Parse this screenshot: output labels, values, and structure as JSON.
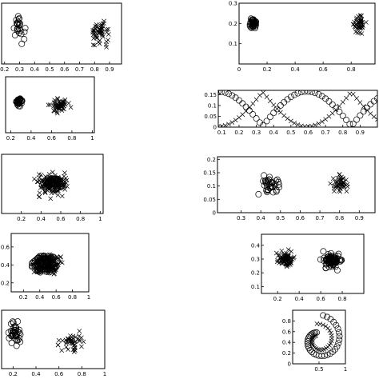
{
  "chart_data": [
    {
      "type": "scatter",
      "xlim": [
        0.18,
        0.98
      ],
      "ylim": [
        0,
        1
      ],
      "xticks": [
        "0.2",
        "0.3",
        "0.4",
        "0.5",
        "0.6",
        "0.7",
        "0.8",
        "0.9"
      ],
      "xtick_values": [
        0.2,
        0.3,
        0.4,
        0.5,
        0.6,
        0.7,
        0.8,
        0.9
      ],
      "yticks": [],
      "ytick_values": [],
      "series": [
        {
          "marker": "circle",
          "cluster": {
            "cx": 0.29,
            "cy": 0.6,
            "sx": 0.06,
            "sy": 0.25,
            "n": 24,
            "clip": true
          }
        },
        {
          "marker": "cross",
          "cluster": {
            "cx": 0.84,
            "cy": 0.5,
            "sx": 0.09,
            "sy": 0.3,
            "n": 55,
            "clip": true
          }
        }
      ]
    },
    {
      "type": "scatter",
      "xlim": [
        0,
        0.97
      ],
      "ylim": [
        0,
        0.3
      ],
      "xticks": [
        "0",
        "0.2",
        "0.4",
        "0.6",
        "0.8"
      ],
      "xtick_values": [
        0,
        0.2,
        0.4,
        0.6,
        0.8
      ],
      "yticks": [
        "0.1",
        "0.2",
        "0.3"
      ],
      "ytick_values": [
        0.1,
        0.2,
        0.3
      ],
      "series": [
        {
          "marker": "circle",
          "cluster": {
            "cx": 0.1,
            "cy": 0.2,
            "sx": 0.04,
            "sy": 0.035,
            "n": 45,
            "clip": true
          }
        },
        {
          "marker": "cross",
          "cluster": {
            "cx": 0.86,
            "cy": 0.19,
            "sx": 0.07,
            "sy": 0.07,
            "n": 45,
            "clip": true
          }
        }
      ]
    },
    {
      "type": "scatter",
      "xlim": [
        0.15,
        1.02
      ],
      "ylim": [
        0,
        1
      ],
      "xticks": [
        "0.2",
        "0.4",
        "0.6",
        "0.8",
        "1"
      ],
      "xtick_values": [
        0.2,
        0.4,
        0.6,
        0.8,
        1
      ],
      "yticks": [],
      "ytick_values": [],
      "series": [
        {
          "marker": "circle",
          "cluster": {
            "cx": 0.28,
            "cy": 0.55,
            "sx": 0.045,
            "sy": 0.1,
            "n": 40,
            "clip": true
          }
        },
        {
          "marker": "cross",
          "cluster": {
            "cx": 0.68,
            "cy": 0.5,
            "sx": 0.15,
            "sy": 0.2,
            "n": 55,
            "clip": true
          }
        }
      ]
    },
    {
      "type": "scatter",
      "xlim": [
        0.08,
        1
      ],
      "ylim": [
        0,
        0.17
      ],
      "xticks": [
        "0.1",
        "0.2",
        "0.3",
        "0.4",
        "0.5",
        "0.6",
        "0.7",
        "0.8",
        "0.9"
      ],
      "xtick_values": [
        0.1,
        0.2,
        0.3,
        0.4,
        0.5,
        0.6,
        0.7,
        0.8,
        0.9
      ],
      "yticks": [
        "0",
        "0.05",
        "0.1",
        "0.15"
      ],
      "ytick_values": [
        0,
        0.05,
        0.1,
        0.15
      ],
      "series": [
        {
          "marker": "circle",
          "curve": "absCosUp"
        },
        {
          "marker": "cross",
          "curve": "absCosDown"
        }
      ]
    },
    {
      "type": "scatter",
      "xlim": [
        0,
        1.03
      ],
      "ylim": [
        0,
        1
      ],
      "xticks": [
        "0.2",
        "0.4",
        "0.6",
        "0.8",
        "1"
      ],
      "xtick_values": [
        0.2,
        0.4,
        0.6,
        0.8,
        1
      ],
      "yticks": [],
      "ytick_values": [],
      "series": [
        {
          "marker": "circle",
          "ellipse": {
            "cx": 0.52,
            "cy": 0.5,
            "rx": 0.11,
            "ry": 0.1,
            "n": 70
          }
        },
        {
          "marker": "cross",
          "cluster": {
            "cx": 0.5,
            "cy": 0.5,
            "sx": 0.3,
            "sy": 0.35,
            "n": 80,
            "clip": true
          }
        }
      ]
    },
    {
      "type": "scatter",
      "xlim": [
        0.18,
        0.98
      ],
      "ylim": [
        0,
        0.21
      ],
      "xticks": [
        "0.3",
        "0.4",
        "0.5",
        "0.6",
        "0.7",
        "0.8",
        "0.9"
      ],
      "xtick_values": [
        0.3,
        0.4,
        0.5,
        0.6,
        0.7,
        0.8,
        0.9
      ],
      "yticks": [
        "0",
        "0.05",
        "0.1",
        "0.15",
        "0.2"
      ],
      "ytick_values": [
        0,
        0.05,
        0.1,
        0.15,
        0.2
      ],
      "series": [
        {
          "marker": "circle",
          "cluster": {
            "cx": 0.45,
            "cy": 0.1,
            "sx": 0.1,
            "sy": 0.06,
            "n": 40,
            "clip": true
          }
        },
        {
          "marker": "cross",
          "cluster": {
            "cx": 0.8,
            "cy": 0.11,
            "sx": 0.07,
            "sy": 0.05,
            "n": 45,
            "clip": true
          }
        }
      ]
    },
    {
      "type": "scatter",
      "xlim": [
        0.05,
        1
      ],
      "ylim": [
        0.1,
        0.75
      ],
      "xticks": [
        "0.2",
        "0.4",
        "0.6",
        "0.8",
        "1"
      ],
      "xtick_values": [
        0.2,
        0.4,
        0.6,
        0.8,
        1
      ],
      "yticks": [
        "0.2",
        "0.4",
        "0.6"
      ],
      "ytick_values": [
        0.2,
        0.4,
        0.6
      ],
      "series": [
        {
          "marker": "circle",
          "ellipse": {
            "cx": 0.46,
            "cy": 0.41,
            "rx": 0.17,
            "ry": 0.1,
            "n": 90
          }
        },
        {
          "marker": "cross",
          "cluster": {
            "cx": 0.5,
            "cy": 0.42,
            "sx": 0.28,
            "sy": 0.18,
            "n": 110,
            "clip": true
          }
        }
      ]
    },
    {
      "type": "scatter",
      "xlim": [
        0.05,
        1
      ],
      "ylim": [
        0.05,
        0.48
      ],
      "xticks": [
        "0.2",
        "0.4",
        "0.6",
        "0.8"
      ],
      "xtick_values": [
        0.2,
        0.4,
        0.6,
        0.8
      ],
      "yticks": [
        "0.1",
        "0.2",
        "0.3",
        "0.4"
      ],
      "ytick_values": [
        0.1,
        0.2,
        0.3,
        0.4
      ],
      "series": [
        {
          "marker": "circle",
          "cluster": {
            "cx": 0.7,
            "cy": 0.29,
            "sx": 0.13,
            "sy": 0.08,
            "n": 90,
            "clip": true
          }
        },
        {
          "marker": "cross",
          "cluster": {
            "cx": 0.28,
            "cy": 0.3,
            "sx": 0.12,
            "sy": 0.08,
            "n": 80,
            "clip": true
          }
        }
      ]
    },
    {
      "type": "scatter",
      "xlim": [
        0.1,
        1
      ],
      "ylim": [
        0,
        1
      ],
      "xticks": [
        "0.2",
        "0.4",
        "0.6",
        "0.8",
        "1"
      ],
      "xtick_values": [
        0.2,
        0.4,
        0.6,
        0.8,
        1
      ],
      "yticks": [],
      "ytick_values": [],
      "series": [
        {
          "marker": "circle",
          "cluster": {
            "cx": 0.22,
            "cy": 0.6,
            "sx": 0.1,
            "sy": 0.3,
            "n": 38,
            "clip": true
          }
        },
        {
          "marker": "cross",
          "cluster": {
            "cx": 0.7,
            "cy": 0.45,
            "sx": 0.2,
            "sy": 0.3,
            "n": 45,
            "clip": true
          }
        }
      ]
    },
    {
      "type": "scatter",
      "xlim": [
        0,
        1
      ],
      "ylim": [
        0,
        1
      ],
      "xticks": [
        "0.5",
        "1"
      ],
      "xtick_values": [
        0.5,
        1
      ],
      "yticks": [
        "0",
        "0.2",
        "0.4",
        "0.6",
        "0.8"
      ],
      "ytick_values": [
        0,
        0.2,
        0.4,
        0.6,
        0.8
      ],
      "series": [
        {
          "marker": "circle",
          "spiral": {
            "turn": "outer"
          }
        },
        {
          "marker": "cross",
          "spiral": {
            "turn": "inner"
          }
        }
      ]
    }
  ]
}
